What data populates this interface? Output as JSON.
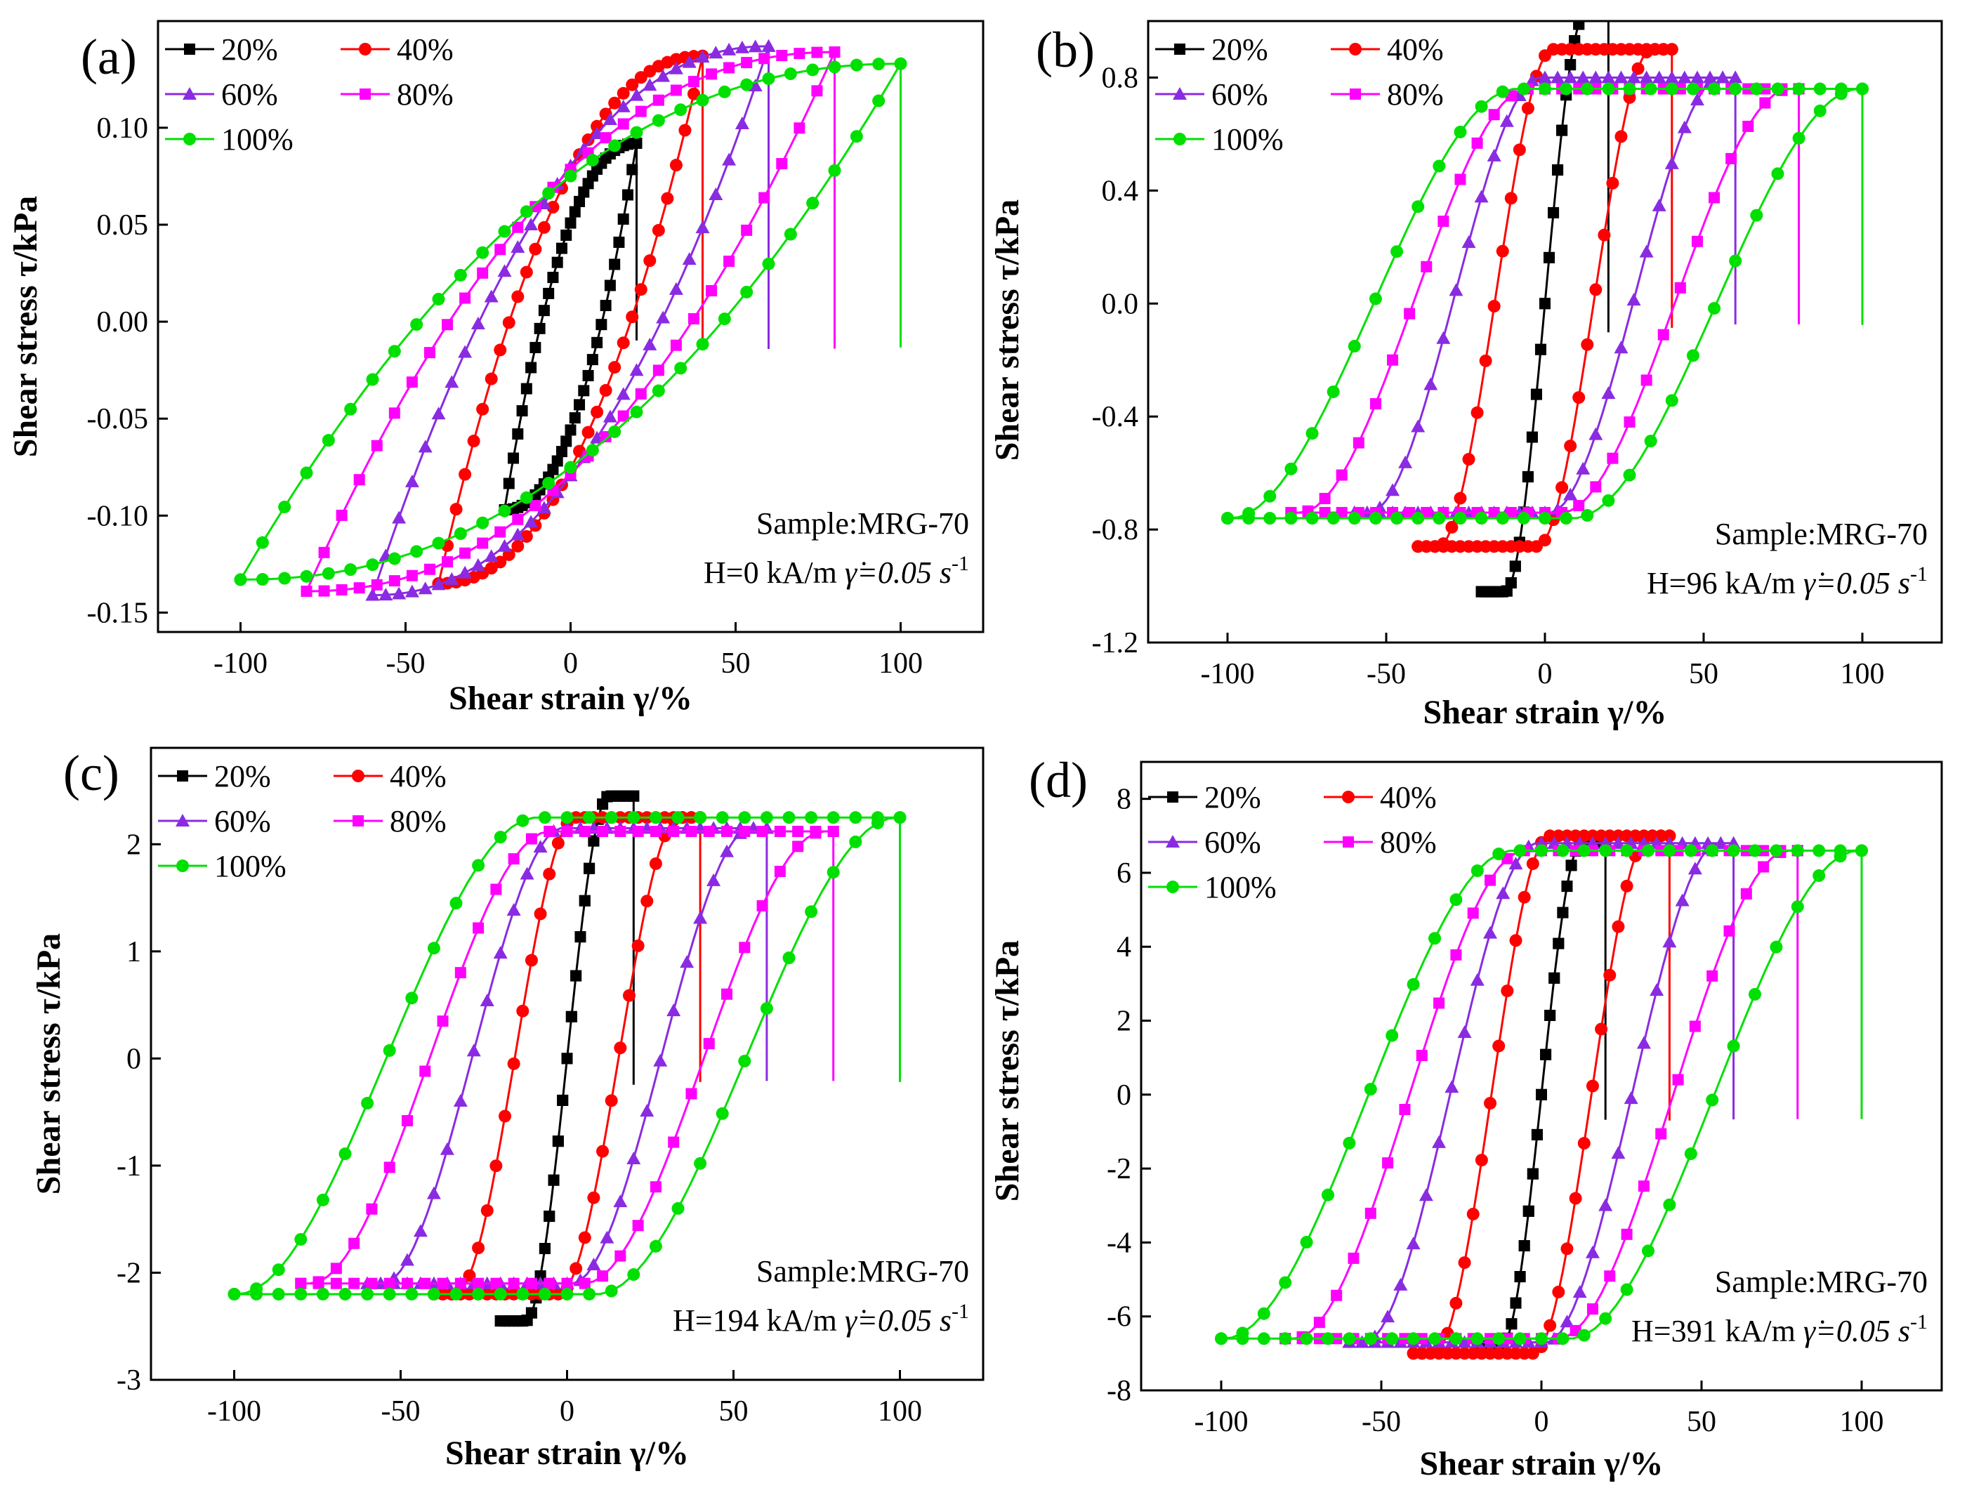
{
  "figure_caption": "",
  "chart_data": [
    {
      "panel": "(a)",
      "type": "line",
      "title": "",
      "xlabel": "Shear strain γ/%",
      "ylabel": "Shear stress τ/kPa",
      "xlim": [
        -125,
        125
      ],
      "ylim": [
        -0.16,
        0.155
      ],
      "xticks": [
        -100,
        -50,
        0,
        50,
        100
      ],
      "yticks": [
        -0.15,
        -0.1,
        -0.05,
        0.0,
        0.05,
        0.1
      ],
      "ytick_labels": [
        "-0.15",
        "-0.10",
        "-0.05",
        "0.00",
        "0.05",
        "0.10"
      ],
      "shape": "elliptic",
      "annotation": {
        "sample": "Sample:MRG-70",
        "field": "H=0 kA/m",
        "rate": "γ̇=0.05 s",
        "rate_exp": "-1"
      },
      "series": [
        {
          "name": "20%",
          "amplitude": 20,
          "tau_max": 0.092,
          "tau_yield": 0.05,
          "tau_min": -0.097
        },
        {
          "name": "40%",
          "amplitude": 40,
          "tau_max": 0.137,
          "tau_yield": 0.075,
          "tau_min": -0.135
        },
        {
          "name": "60%",
          "amplitude": 60,
          "tau_max": 0.142,
          "tau_yield": 0.09,
          "tau_min": -0.141
        },
        {
          "name": "80%",
          "amplitude": 80,
          "tau_max": 0.139,
          "tau_yield": 0.1,
          "tau_min": -0.139
        },
        {
          "name": "100%",
          "amplitude": 100,
          "tau_max": 0.133,
          "tau_yield": 0.11,
          "tau_min": -0.133
        }
      ]
    },
    {
      "panel": "(b)",
      "type": "line",
      "title": "",
      "xlabel": "Shear strain γ/%",
      "ylabel": "Shear stress τ/kPa",
      "xlim": [
        -125,
        125
      ],
      "ylim": [
        -1.2,
        1.0
      ],
      "xticks": [
        -100,
        -50,
        0,
        50,
        100
      ],
      "yticks": [
        -1.2,
        -0.8,
        -0.4,
        0.0,
        0.4,
        0.8
      ],
      "ytick_labels": [
        "-1.2",
        "-0.8",
        "-0.4",
        "0.0",
        "0.4",
        "0.8"
      ],
      "shape": "plastic",
      "annotation": {
        "sample": "Sample:MRG-70",
        "field": "H=96 kA/m",
        "rate": "γ̇=0.05 s",
        "rate_exp": "-1"
      },
      "series": [
        {
          "name": "20%",
          "amplitude": 20,
          "tau_max": 1.02,
          "tau_yield": 0.75,
          "tau_min": -1.02
        },
        {
          "name": "40%",
          "amplitude": 40,
          "tau_max": 0.9,
          "tau_yield": 0.72,
          "tau_min": -0.86
        },
        {
          "name": "60%",
          "amplitude": 60,
          "tau_max": 0.8,
          "tau_yield": 0.72,
          "tau_min": -0.74
        },
        {
          "name": "80%",
          "amplitude": 80,
          "tau_max": 0.76,
          "tau_yield": 0.72,
          "tau_min": -0.74
        },
        {
          "name": "100%",
          "amplitude": 100,
          "tau_max": 0.76,
          "tau_yield": 0.76,
          "tau_min": -0.76
        }
      ]
    },
    {
      "panel": "(c)",
      "type": "line",
      "title": "",
      "xlabel": "Shear strain γ/%",
      "ylabel": "Shear stress τ/kPa",
      "xlim": [
        -125,
        125
      ],
      "ylim": [
        -3,
        2.9
      ],
      "xticks": [
        -100,
        -50,
        0,
        50,
        100
      ],
      "yticks": [
        -3,
        -2,
        -1,
        0,
        1,
        2
      ],
      "ytick_labels": [
        "-3",
        "-2",
        "-1",
        "0",
        "1",
        "2"
      ],
      "shape": "plastic",
      "annotation": {
        "sample": "Sample:MRG-70",
        "field": "H=194 kA/m",
        "rate": "γ̇=0.05 s",
        "rate_exp": "-1"
      },
      "series": [
        {
          "name": "20%",
          "amplitude": 20,
          "tau_max": 2.45,
          "tau_yield": 2.1,
          "tau_min": -2.45
        },
        {
          "name": "40%",
          "amplitude": 40,
          "tau_max": 2.25,
          "tau_yield": 2.15,
          "tau_min": -2.2
        },
        {
          "name": "60%",
          "amplitude": 60,
          "tau_max": 2.15,
          "tau_yield": 2.1,
          "tau_min": -2.1
        },
        {
          "name": "80%",
          "amplitude": 80,
          "tau_max": 2.12,
          "tau_yield": 2.1,
          "tau_min": -2.1
        },
        {
          "name": "100%",
          "amplitude": 100,
          "tau_max": 2.25,
          "tau_yield": 2.2,
          "tau_min": -2.2
        }
      ]
    },
    {
      "panel": "(d)",
      "type": "line",
      "title": "",
      "xlabel": "Shear strain γ/%",
      "ylabel": "Shear stress τ/kPa",
      "xlim": [
        -125,
        125
      ],
      "ylim": [
        -8,
        9
      ],
      "xticks": [
        -100,
        -50,
        0,
        50,
        100
      ],
      "yticks": [
        -8,
        -6,
        -4,
        -2,
        0,
        2,
        4,
        6,
        8
      ],
      "ytick_labels": [
        "-8",
        "-6",
        "-4",
        "-2",
        "0",
        "2",
        "4",
        "6",
        "8"
      ],
      "shape": "plastic",
      "annotation": {
        "sample": "Sample:MRG-70",
        "field": "H=391 kA/m",
        "rate": "γ̇=0.05 s",
        "rate_exp": "-1"
      },
      "series": [
        {
          "name": "20%",
          "amplitude": 20,
          "tau_max": 6.8,
          "tau_yield": 6.5,
          "tau_min": -6.8
        },
        {
          "name": "40%",
          "amplitude": 40,
          "tau_max": 7.0,
          "tau_yield": 6.6,
          "tau_min": -7.0
        },
        {
          "name": "60%",
          "amplitude": 60,
          "tau_max": 6.8,
          "tau_yield": 6.6,
          "tau_min": -6.7
        },
        {
          "name": "80%",
          "amplitude": 80,
          "tau_max": 6.6,
          "tau_yield": 6.6,
          "tau_min": -6.6
        },
        {
          "name": "100%",
          "amplitude": 100,
          "tau_max": 6.6,
          "tau_yield": 6.6,
          "tau_min": -6.6
        }
      ]
    }
  ],
  "series_style": [
    {
      "name": "20%",
      "color": "#000000",
      "marker": "square"
    },
    {
      "name": "40%",
      "color": "#ff0000",
      "marker": "circle"
    },
    {
      "name": "60%",
      "color": "#8a2be2",
      "marker": "triangle"
    },
    {
      "name": "80%",
      "color": "#ff00ff",
      "marker": "square"
    },
    {
      "name": "100%",
      "color": "#00e000",
      "marker": "circle"
    }
  ]
}
